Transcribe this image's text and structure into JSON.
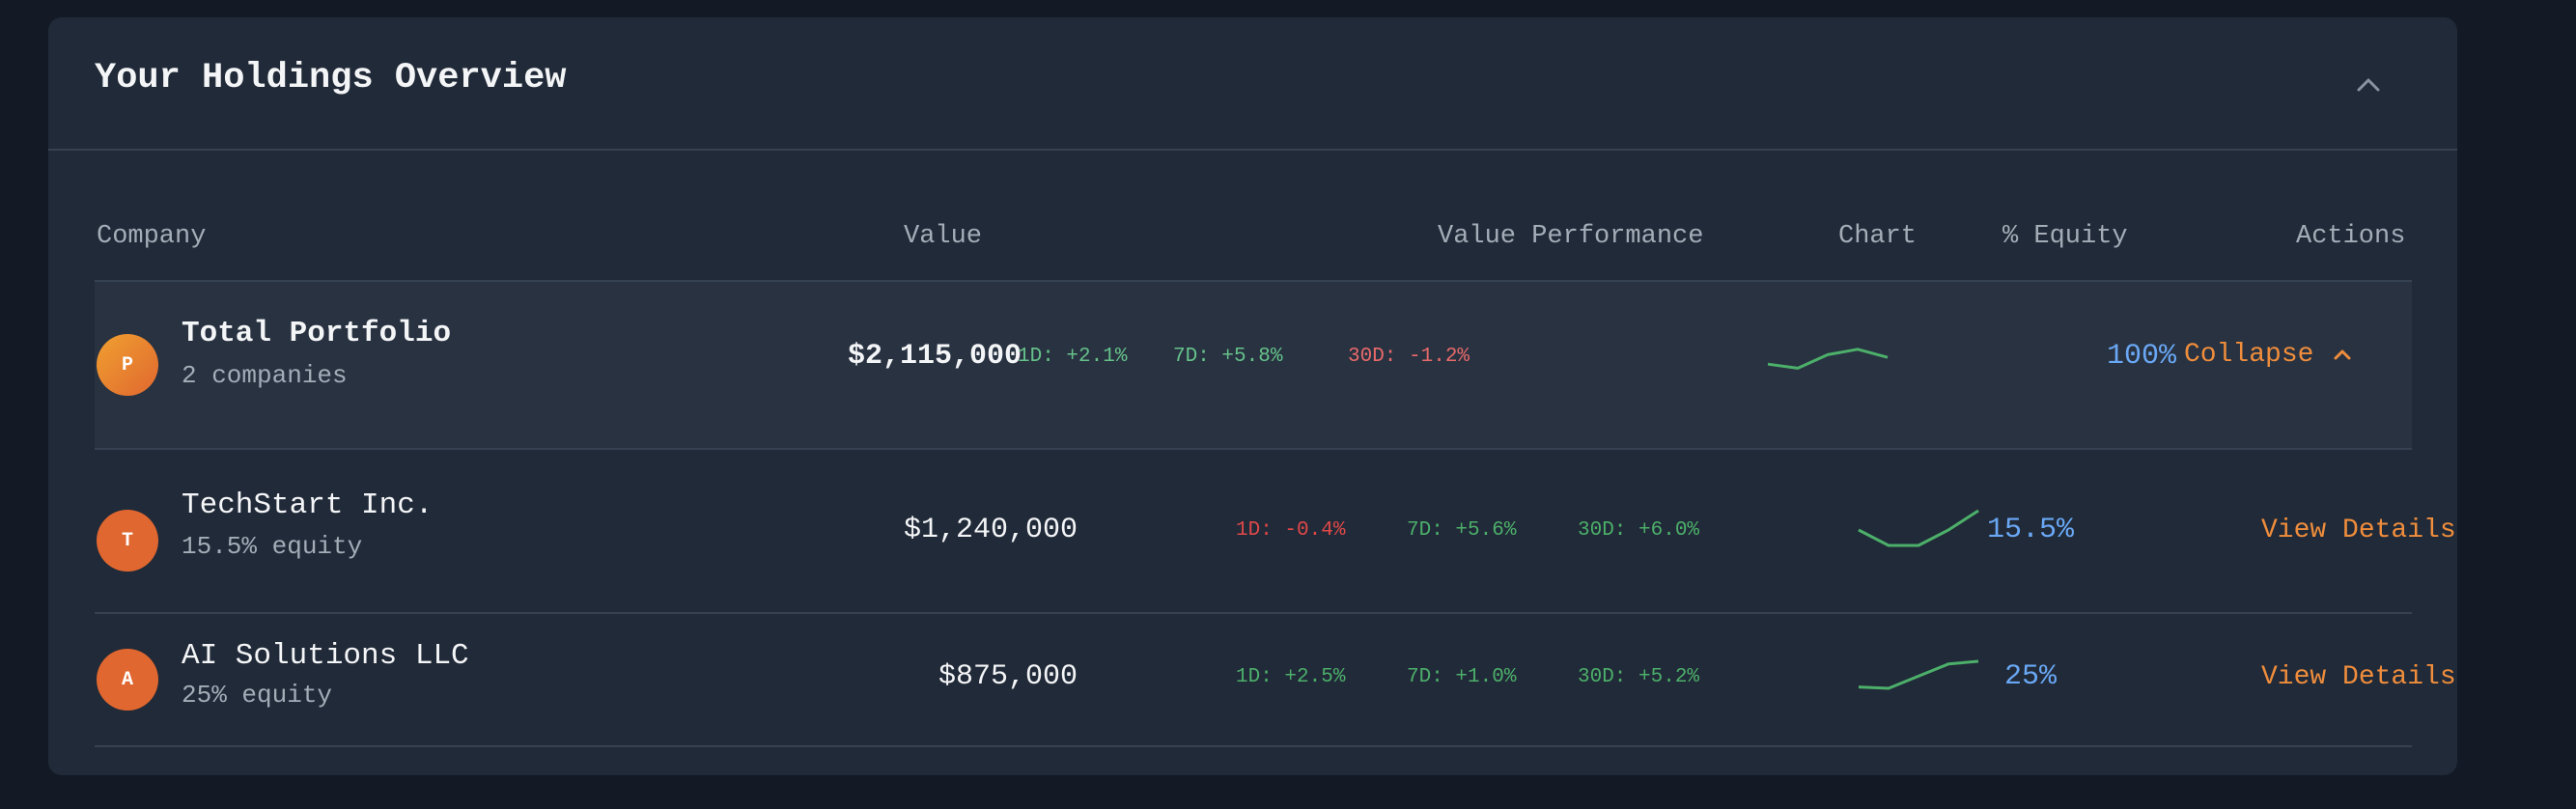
{
  "card": {
    "title": "Your Holdings Overview"
  },
  "table": {
    "headers": {
      "company": "Company",
      "value": "Value",
      "performance": "Value Performance",
      "chart": "Chart",
      "equity": "% Equity",
      "actions": "Actions"
    }
  },
  "total": {
    "avatar": "P",
    "name": "Total Portfolio",
    "sub": "2 companies",
    "value": "$2,115,000",
    "perf_1d": "1D: +2.1%",
    "perf_7d": "7D: +5.8%",
    "perf_30d": "30D: -1.2%",
    "equity": "100%",
    "action": "Collapse",
    "sparkline": [
      0.35,
      0.2,
      0.7,
      0.9,
      0.6
    ]
  },
  "rows": [
    {
      "avatar": "T",
      "name": "TechStart Inc.",
      "sub": "15.5% equity",
      "value": "$1,240,000",
      "perf_1d": "1D: -0.4%",
      "perf_7d": "7D: +5.6%",
      "perf_30d": "30D: +6.0%",
      "equity": "15.5%",
      "action": "View Details",
      "sparkline": [
        0.5,
        0.1,
        0.1,
        0.5,
        1.0
      ]
    },
    {
      "avatar": "A",
      "name": "AI Solutions LLC",
      "sub": "25% equity",
      "value": "$875,000",
      "perf_1d": "1D: +2.5%",
      "perf_7d": "7D: +1.0%",
      "perf_30d": "30D: +5.2%",
      "equity": "25%",
      "action": "View Details",
      "sparkline": [
        0.05,
        0.0,
        0.45,
        0.9,
        1.0
      ]
    }
  ],
  "colors": {
    "positive": "#4caf6a",
    "negative": "#e04848",
    "accent_orange": "#ef8d3c",
    "accent_blue": "#6aa8f5",
    "spark": "#4caf6a"
  }
}
